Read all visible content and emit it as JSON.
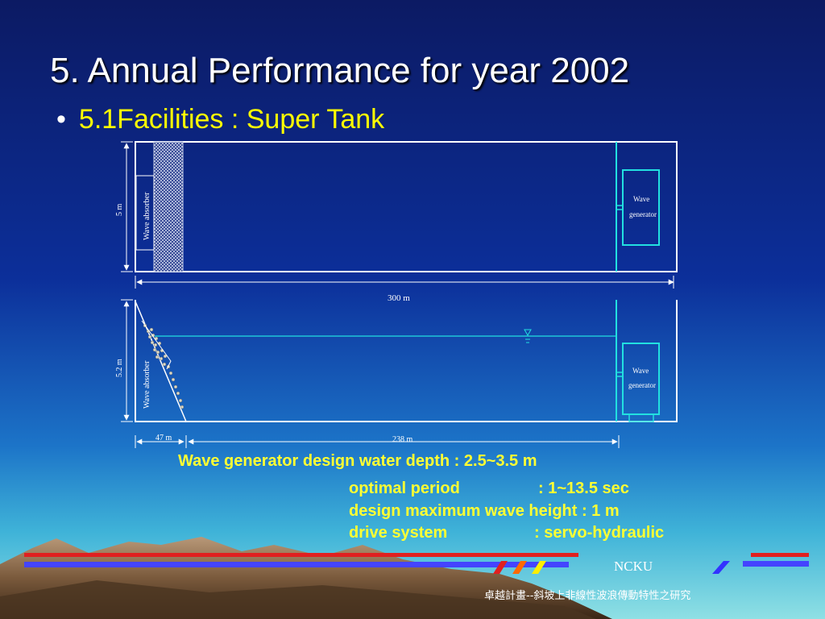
{
  "slide": {
    "title": "5. Annual Performance for year 2002",
    "bullet": "5.1Facilities : Super Tank"
  },
  "diagram": {
    "top_view": {
      "absorber_label": "Wave absorber",
      "generator_label_1": "Wave",
      "generator_label_2": "generator",
      "width_label": "5 m",
      "length_label": "300 m"
    },
    "side_view": {
      "absorber_label": "Wave absorber",
      "generator_label_1": "Wave",
      "generator_label_2": "generator",
      "depth_label": "5.2 m",
      "slope_length_label": "47 m",
      "flat_length_label": "238  m"
    }
  },
  "specs": {
    "line1": "Wave generator  design water depth : 2.5~3.5 m",
    "optimal_period_label": "optimal period",
    "optimal_period_value": ": 1~13.5 sec",
    "max_height_line": "design maximum wave height : 1 m",
    "drive_system_label": "drive system",
    "drive_system_value": ": servo-hydraulic"
  },
  "footer": {
    "org": "NCKU",
    "project": "卓越計畫--斜坡上非線性波浪傳動特性之研究"
  },
  "colors": {
    "background_top": "#0a1b6e",
    "title": "#ffffff",
    "bullet": "#ffff00",
    "spec_text": "#ffff33",
    "diagram_lines": "#ffffff",
    "generator_frame": "#22e0e0",
    "deco_red": "#e02020",
    "deco_blue": "#4444ff"
  }
}
